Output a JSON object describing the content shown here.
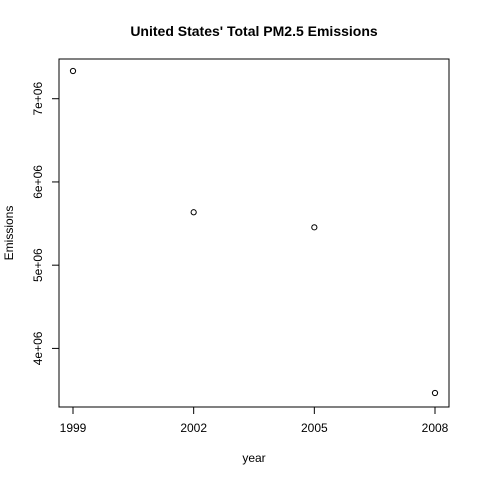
{
  "chart_data": {
    "type": "scatter",
    "title": "United States' Total PM2.5 Emissions",
    "xlabel": "year",
    "ylabel": "Emissions",
    "x": [
      1999,
      2002,
      2005,
      2008
    ],
    "y": [
      7332967,
      5635780,
      5454703,
      3464206
    ],
    "xlim": [
      1999,
      2008
    ],
    "ylim": [
      3464206,
      7332967
    ],
    "x_ticks": [
      1999,
      2002,
      2005,
      2008
    ],
    "x_tick_labels": [
      "1999",
      "2002",
      "2005",
      "2008"
    ],
    "y_ticks": [
      4000000,
      5000000,
      6000000,
      7000000
    ],
    "y_tick_labels": [
      "4e+06",
      "5e+06",
      "6e+06",
      "7e+06"
    ],
    "grid": false,
    "legend": "none",
    "marker": "open-circle",
    "colors": {
      "points": "#000000",
      "axes": "#000000",
      "background": "#ffffff"
    }
  }
}
